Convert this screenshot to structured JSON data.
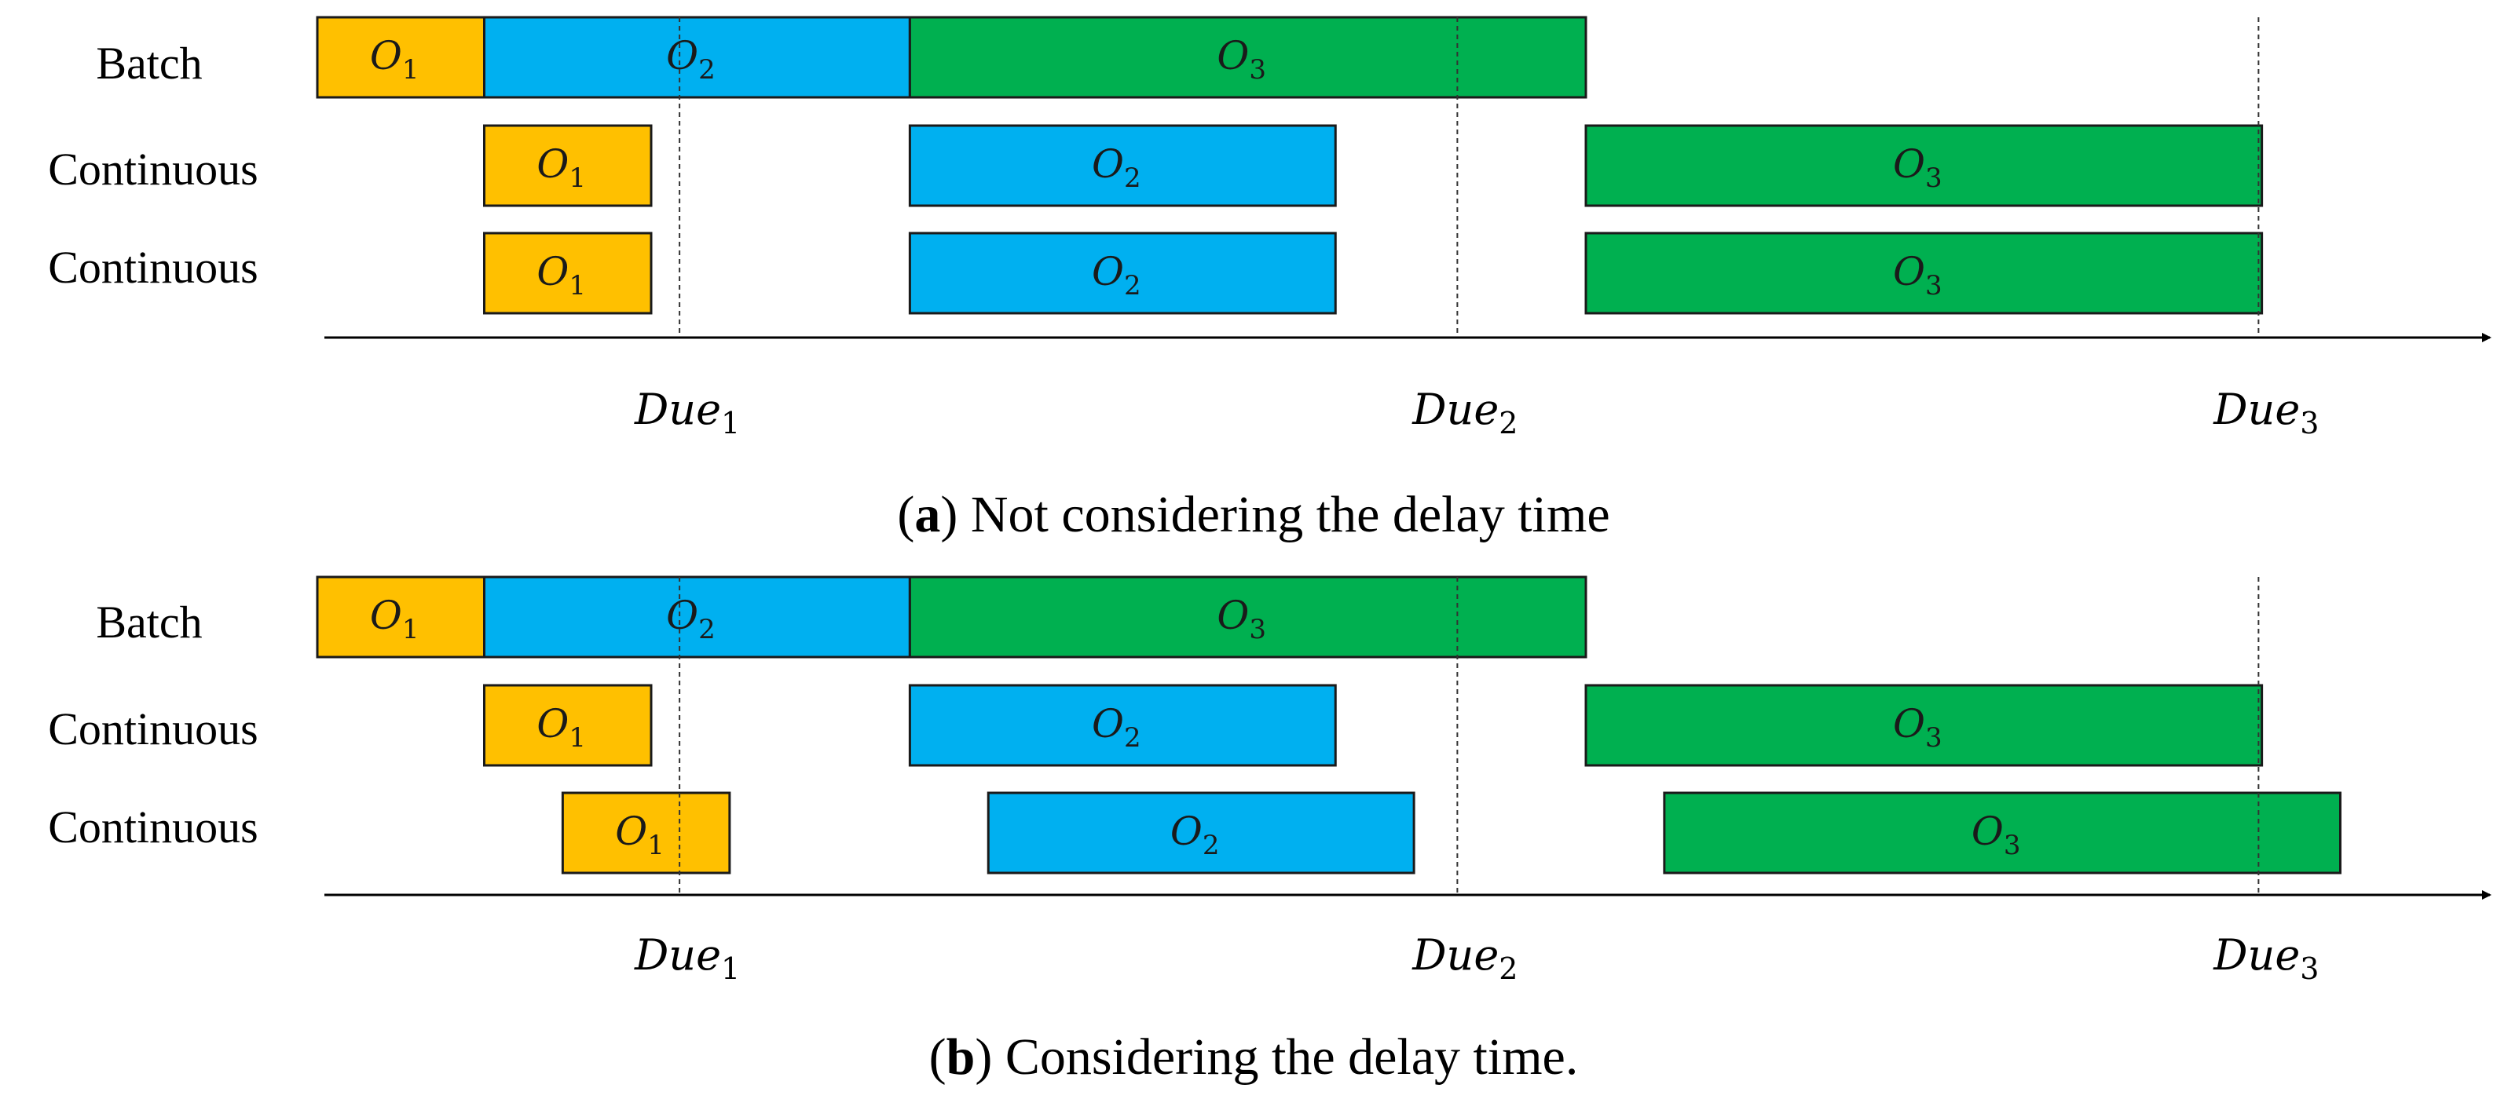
{
  "colors": {
    "O1": "#FFC000",
    "O2": "#00B0F0",
    "O3": "#00B050"
  },
  "rows": [
    "Batch",
    "Continuous",
    "Continuous"
  ],
  "due_labels": [
    {
      "base": "Due",
      "sub": "1"
    },
    {
      "base": "Due",
      "sub": "2"
    },
    {
      "base": "Due",
      "sub": "3"
    }
  ],
  "panels": [
    {
      "caption_letter": "a",
      "caption_text": " Not considering the delay time",
      "schedule": [
        [
          {
            "op": "O",
            "sub": "1",
            "color_key": "O1",
            "start": 0,
            "end": 1
          },
          {
            "op": "O",
            "sub": "2",
            "color_key": "O2",
            "start": 1,
            "end": 3.55
          },
          {
            "op": "O",
            "sub": "3",
            "color_key": "O3",
            "start": 3.55,
            "end": 7.6
          }
        ],
        [
          {
            "op": "O",
            "sub": "1",
            "color_key": "O1",
            "start": 1,
            "end": 2
          },
          {
            "op": "O",
            "sub": "2",
            "color_key": "O2",
            "start": 3.55,
            "end": 6.1
          },
          {
            "op": "O",
            "sub": "3",
            "color_key": "O3",
            "start": 7.6,
            "end": 11.65
          }
        ],
        [
          {
            "op": "O",
            "sub": "1",
            "color_key": "O1",
            "start": 1,
            "end": 2
          },
          {
            "op": "O",
            "sub": "2",
            "color_key": "O2",
            "start": 3.55,
            "end": 6.1
          },
          {
            "op": "O",
            "sub": "3",
            "color_key": "O3",
            "start": 7.6,
            "end": 11.65
          }
        ]
      ]
    },
    {
      "caption_letter": "b",
      "caption_text": " Considering the delay time.",
      "schedule": [
        [
          {
            "op": "O",
            "sub": "1",
            "color_key": "O1",
            "start": 0,
            "end": 1
          },
          {
            "op": "O",
            "sub": "2",
            "color_key": "O2",
            "start": 1,
            "end": 3.55
          },
          {
            "op": "O",
            "sub": "3",
            "color_key": "O3",
            "start": 3.55,
            "end": 7.6
          }
        ],
        [
          {
            "op": "O",
            "sub": "1",
            "color_key": "O1",
            "start": 1,
            "end": 2
          },
          {
            "op": "O",
            "sub": "2",
            "color_key": "O2",
            "start": 3.55,
            "end": 6.1
          },
          {
            "op": "O",
            "sub": "3",
            "color_key": "O3",
            "start": 7.6,
            "end": 11.65
          }
        ],
        [
          {
            "op": "O",
            "sub": "1",
            "color_key": "O1",
            "start": 1.47,
            "end": 2.47
          },
          {
            "op": "O",
            "sub": "2",
            "color_key": "O2",
            "start": 4.02,
            "end": 6.57
          },
          {
            "op": "O",
            "sub": "3",
            "color_key": "O3",
            "start": 8.07,
            "end": 12.12
          }
        ]
      ]
    }
  ],
  "due_times": [
    2.17,
    6.83,
    11.63
  ]
}
